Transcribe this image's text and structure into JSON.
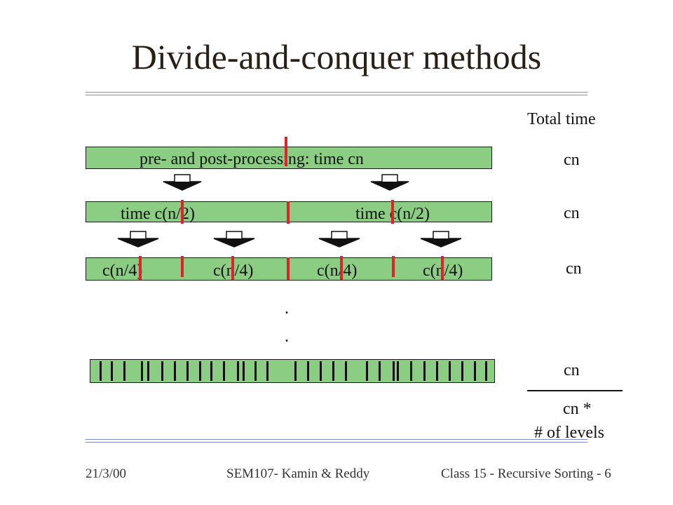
{
  "title": "Divide-and-conquer methods",
  "diagram": {
    "level1": {
      "label": "pre- and post-processing:  time cn"
    },
    "level2": {
      "left_label": "time c(n/2)",
      "right_label": "time c(n/2)"
    },
    "level3": {
      "labels": [
        "c(n/4)",
        "c(n/4)",
        "c(n/4)",
        "c(n/4)"
      ]
    },
    "ellipsis": [
      ".",
      "."
    ],
    "colors": {
      "bar_fill": "#8ccd84",
      "divider_red": "#e0232a",
      "rule_blue": "#7f8fc6"
    }
  },
  "totals": {
    "header": "Total time",
    "rows": [
      "cn",
      "cn",
      "cn",
      "cn"
    ],
    "result_line1": "cn *",
    "result_line2": "# of levels"
  },
  "footer": {
    "date": "21/3/00",
    "course": "SEM107- Kamin & Reddy",
    "lecture": "Class 15 - Recursive Sorting - 6"
  }
}
